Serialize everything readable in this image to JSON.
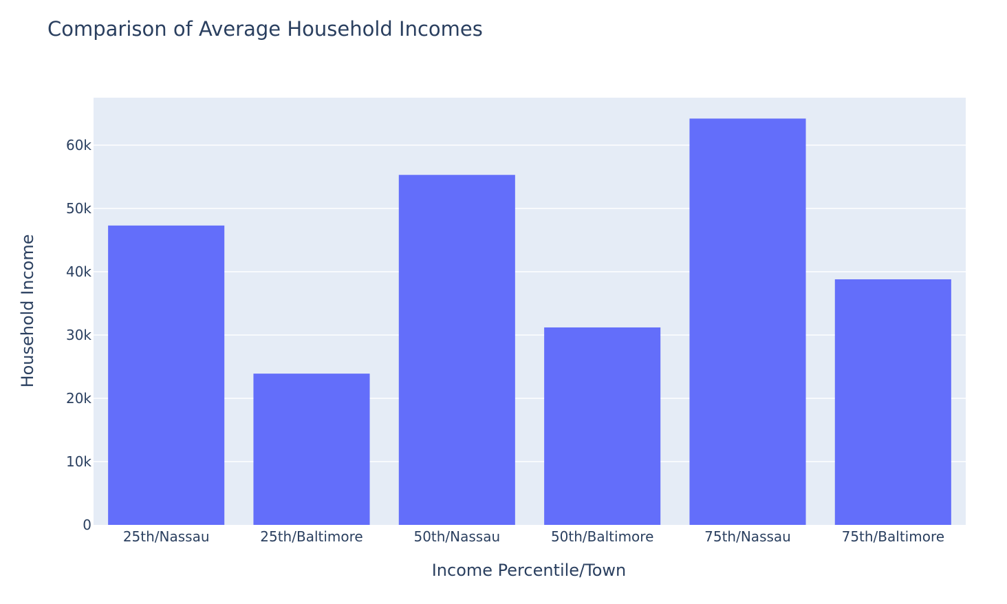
{
  "colors": {
    "bar": "#636efa",
    "plot_background": "#e5ecf6",
    "gridline": "#ffffff",
    "text": "#2a3f5f"
  },
  "chart_data": {
    "type": "bar",
    "title": "Comparison of Average Household Incomes",
    "xlabel": "Income Percentile/Town",
    "ylabel": "Household Income",
    "categories": [
      "25th/Nassau",
      "25th/Baltimore",
      "50th/Nassau",
      "50th/Baltimore",
      "75th/Nassau",
      "75th/Baltimore"
    ],
    "values": [
      47300,
      23900,
      55300,
      31200,
      64200,
      38800
    ],
    "ylim": [
      0,
      67500
    ],
    "yticks": [
      0,
      10000,
      20000,
      30000,
      40000,
      50000,
      60000
    ],
    "ytick_labels": [
      "0",
      "10k",
      "20k",
      "30k",
      "40k",
      "50k",
      "60k"
    ],
    "grid": true,
    "legend": false
  }
}
